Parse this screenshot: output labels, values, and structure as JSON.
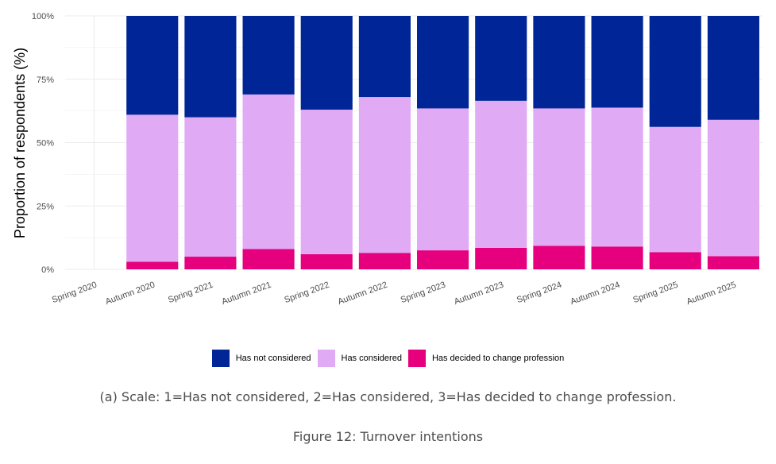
{
  "chart_data": {
    "type": "bar",
    "stacked": true,
    "title": "",
    "xlabel": "",
    "ylabel": "Proportion of respondents (%)",
    "ylim": [
      0,
      100
    ],
    "y_ticks": [
      "0%",
      "25%",
      "50%",
      "75%",
      "100%"
    ],
    "categories": [
      "Spring 2020",
      "Autumn 2020",
      "Spring 2021",
      "Autumn 2021",
      "Spring 2022",
      "Autumn 2022",
      "Spring 2023",
      "Autumn 2023",
      "Spring 2024",
      "Autumn 2024",
      "Spring 2025",
      "Autumn 2025"
    ],
    "series": [
      {
        "name": "Has decided to change profession",
        "color": "#e6007e",
        "values": [
          null,
          3,
          5,
          8,
          6,
          6.5,
          7.5,
          8.5,
          9.3,
          9,
          6.8,
          5.2
        ]
      },
      {
        "name": "Has considered",
        "color": "#e0aaf5",
        "values": [
          null,
          58,
          55,
          61,
          57,
          61.5,
          56,
          58,
          54.2,
          54.8,
          49.4,
          53.8
        ]
      },
      {
        "name": "Has not considered",
        "color": "#002596",
        "values": [
          null,
          39,
          40,
          31,
          37,
          32,
          36.5,
          33.5,
          36.5,
          36.2,
          43.8,
          41
        ]
      }
    ],
    "legend": {
      "placement": "bottom",
      "items": [
        {
          "label": "Has not considered",
          "color": "#002596"
        },
        {
          "label": "Has considered",
          "color": "#e0aaf5"
        },
        {
          "label": "Has decided to change profession",
          "color": "#e6007e"
        }
      ]
    },
    "grid": true
  },
  "note": "(a) Scale: 1=Has not considered, 2=Has considered, 3=Has decided to change profession.",
  "caption": "Figure 12: Turnover intentions"
}
